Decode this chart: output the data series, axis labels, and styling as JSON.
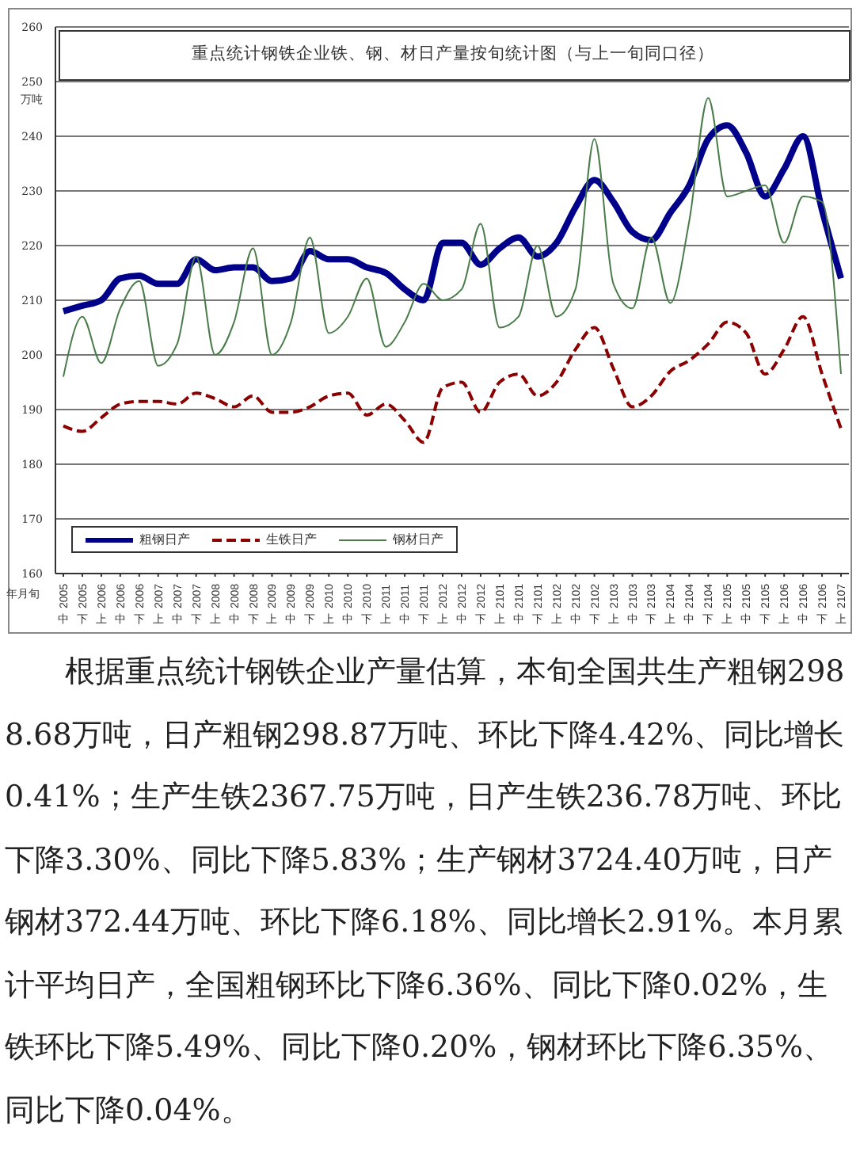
{
  "chart_data": {
    "type": "line",
    "title": "重点统计钢铁企业铁、钢、材日产量按旬统计图（与上一旬同口径）",
    "ylabel": "万吨",
    "xlabel": "年月旬",
    "categories": [
      "2005 中",
      "2005 下",
      "2006 上",
      "2006 中",
      "2006 下",
      "2007 上",
      "2007 中",
      "2007 下",
      "2008 上",
      "2008 中",
      "2008 下",
      "2009 上",
      "2009 中",
      "2009 下",
      "2010 上",
      "2010 中",
      "2010 下",
      "2011 上",
      "2011 中",
      "2011 下",
      "2012 上",
      "2012 中",
      "2012 下",
      "2101 上",
      "2101 中",
      "2101 下",
      "2102 上",
      "2102 中",
      "2102 下",
      "2103 上",
      "2103 中",
      "2103 下",
      "2104 上",
      "2104 中",
      "2104 下",
      "2105 上",
      "2105 中",
      "2105 下",
      "2106 上",
      "2106 中",
      "2106 下",
      "2107 上"
    ],
    "series": [
      {
        "name": "粗钢日产",
        "color": "#00008b",
        "line_style": "solid",
        "values": [
          208,
          209,
          210,
          214,
          214.5,
          213,
          213,
          217.5,
          215.5,
          216,
          216,
          213.5,
          214,
          219,
          217.5,
          217.5,
          216,
          215,
          212,
          210,
          220.5,
          220.5,
          216.5,
          219.5,
          221.5,
          218,
          220.5,
          227,
          232,
          228,
          222.5,
          221,
          226,
          231,
          239.5,
          242,
          237,
          229,
          234,
          240,
          226.5,
          214
        ]
      },
      {
        "name": "生铁日产",
        "color": "#8b0000",
        "line_style": "dashed",
        "values": [
          187,
          186,
          188.5,
          191,
          191.5,
          191.5,
          191,
          193,
          192,
          190.5,
          192.5,
          189.5,
          189.5,
          190.5,
          192.5,
          193,
          189,
          191,
          188,
          184,
          194,
          195,
          189.5,
          195,
          196.5,
          192.5,
          195,
          201,
          205,
          197.5,
          190.5,
          192.5,
          197,
          199,
          202,
          206,
          204,
          196.5,
          201,
          207,
          196.5,
          186.5
        ]
      },
      {
        "name": "钢材日产",
        "color": "#4a7c4a",
        "line_style": "solid",
        "values": [
          196,
          207,
          198.5,
          208.5,
          213.5,
          198,
          202,
          218,
          200,
          206,
          219.5,
          200,
          206,
          221.5,
          204,
          207,
          214,
          201.5,
          206,
          213,
          210,
          212,
          224,
          205,
          207,
          220,
          207,
          212,
          239.5,
          213,
          208.5,
          221.5,
          209.5,
          224.5,
          247,
          229,
          230,
          231,
          220.5,
          229,
          228,
          196.5
        ]
      }
    ],
    "ylim": [
      160,
      260
    ],
    "yticks": [
      160,
      170,
      180,
      190,
      200,
      210,
      220,
      230,
      240,
      250,
      260
    ],
    "grid": "y",
    "legend": "bottom left",
    "marker": "none",
    "annotations": [
      "根据重点统计钢铁企业产量估算，本旬全国共生产粗钢2988.68万吨，日产粗钢298.87万吨、环比下降4.42%、同比增长0.41%；生产生铁2367.75万吨，日产生铁236.78万吨、环比下降3.30%、同比下降5.83%；生产钢材3724.40万吨，日产钢材372.44万吨、环比下降6.18%、同比增长2.91%。本月累计平均日产，全国粗钢环比下降6.36%、同比下降0.02%，生铁环比下降5.49%、同比下降0.20%，钢材环比下降6.35%、同比下降0.04%。"
    ]
  }
}
